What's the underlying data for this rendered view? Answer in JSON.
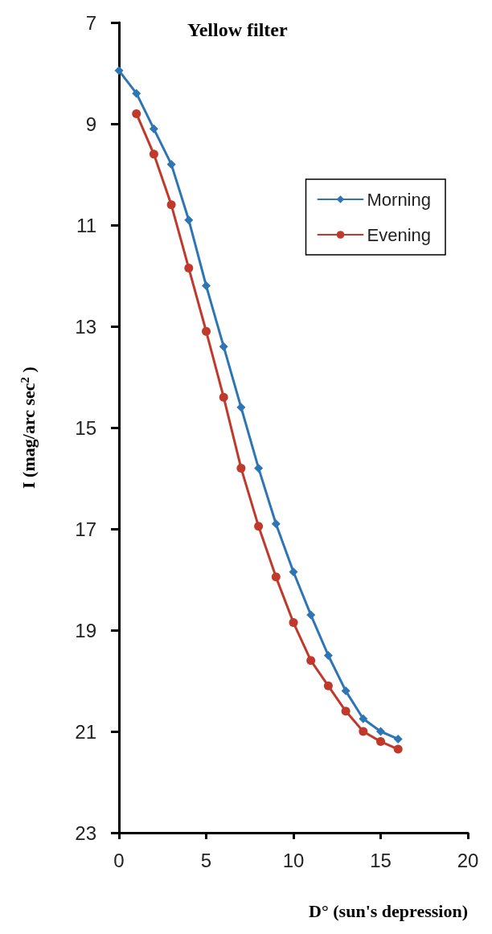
{
  "chart_data": {
    "type": "line",
    "title": "Yellow filter",
    "xlabel": "D° (sun's depression)",
    "ylabel": "I (mag/arc sec$^{2}$ )",
    "x": [
      0,
      1,
      2,
      3,
      4,
      5,
      6,
      7,
      8,
      9,
      10,
      11,
      12,
      13,
      14,
      15,
      16
    ],
    "series": [
      {
        "name": "Morning",
        "color": "#2e75b6",
        "marker": "diamond",
        "values": [
          7.95,
          8.4,
          9.1,
          9.8,
          10.9,
          12.2,
          13.4,
          14.6,
          15.8,
          16.9,
          17.85,
          18.7,
          19.5,
          20.2,
          20.75,
          21.0,
          21.15
        ]
      },
      {
        "name": "Evening",
        "color": "#c0392b",
        "marker": "circle",
        "values": [
          null,
          8.8,
          9.6,
          10.6,
          11.85,
          13.1,
          14.4,
          15.8,
          16.95,
          17.95,
          18.85,
          19.6,
          20.1,
          20.6,
          21.0,
          21.2,
          21.35
        ]
      }
    ],
    "xlim": [
      0,
      20
    ],
    "xticks": [
      0,
      5,
      10,
      15,
      20
    ],
    "ylim": [
      23,
      7
    ],
    "yticks": [
      7,
      9,
      11,
      13,
      15,
      17,
      19,
      21,
      23
    ],
    "grid": false,
    "legend": "top right",
    "line_style": "solid"
  }
}
